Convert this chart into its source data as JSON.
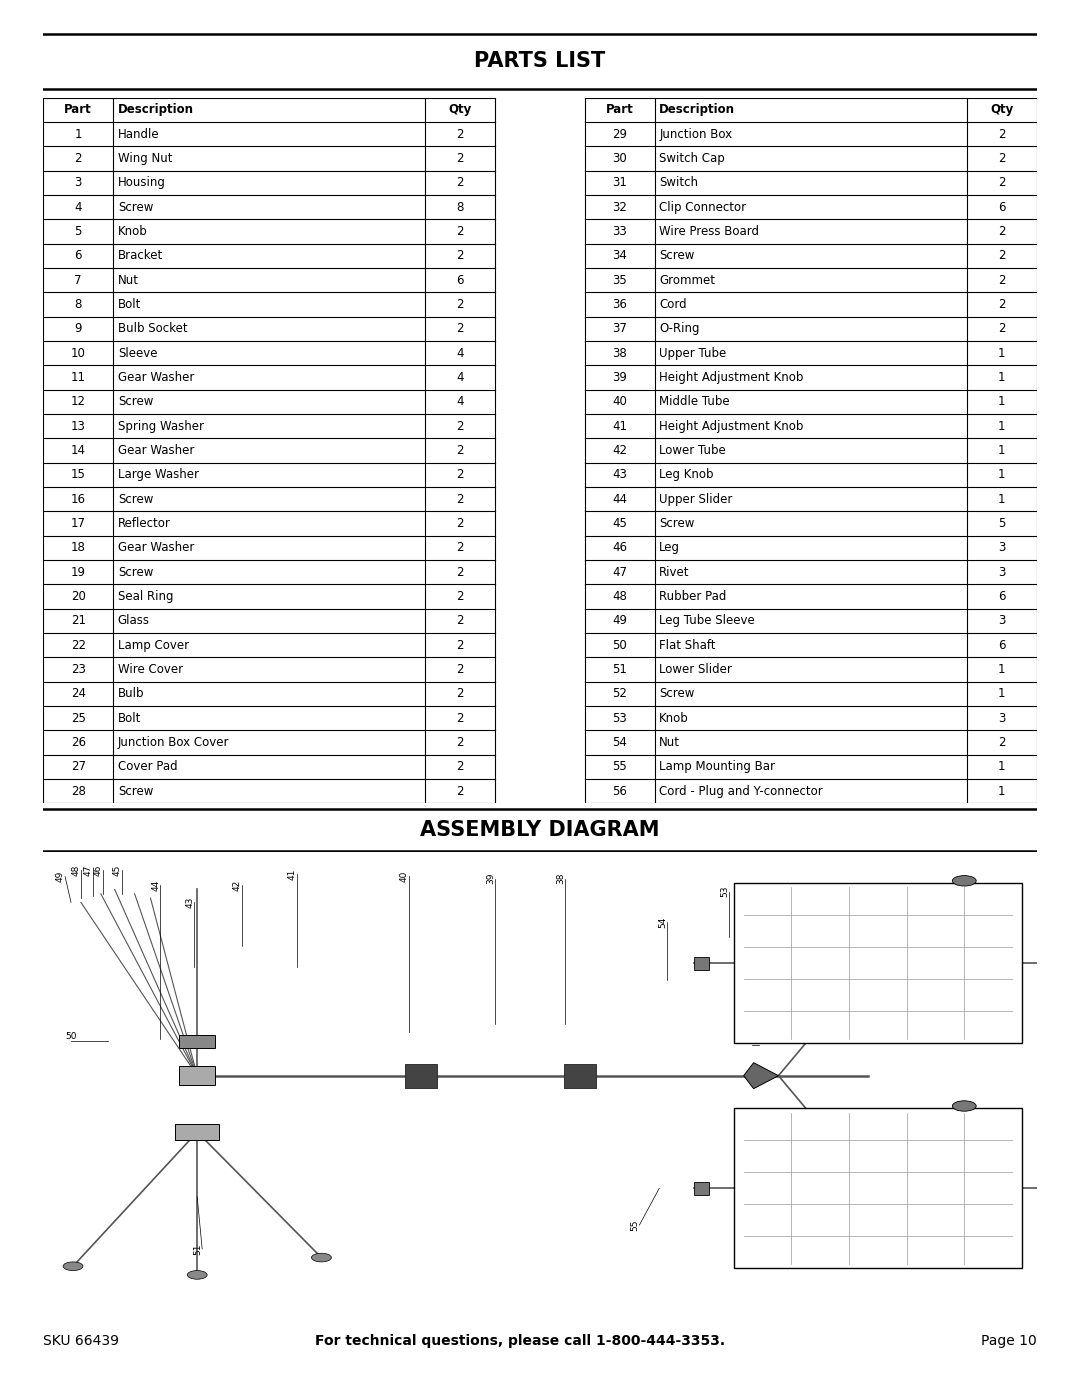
{
  "title": "PARTS LIST",
  "assembly_title": "ASSEMBLY DIAGRAM",
  "footer_sku": "SKU 66439",
  "footer_text": "For technical questions, please call 1-800-444-3353.",
  "footer_page": "Page 10",
  "left_parts": [
    [
      "Part",
      "Description",
      "Qty"
    ],
    [
      "1",
      "Handle",
      "2"
    ],
    [
      "2",
      "Wing Nut",
      "2"
    ],
    [
      "3",
      "Housing",
      "2"
    ],
    [
      "4",
      "Screw",
      "8"
    ],
    [
      "5",
      "Knob",
      "2"
    ],
    [
      "6",
      "Bracket",
      "2"
    ],
    [
      "7",
      "Nut",
      "6"
    ],
    [
      "8",
      "Bolt",
      "2"
    ],
    [
      "9",
      "Bulb Socket",
      "2"
    ],
    [
      "10",
      "Sleeve",
      "4"
    ],
    [
      "11",
      "Gear Washer",
      "4"
    ],
    [
      "12",
      "Screw",
      "4"
    ],
    [
      "13",
      "Spring Washer",
      "2"
    ],
    [
      "14",
      "Gear Washer",
      "2"
    ],
    [
      "15",
      "Large Washer",
      "2"
    ],
    [
      "16",
      "Screw",
      "2"
    ],
    [
      "17",
      "Reflector",
      "2"
    ],
    [
      "18",
      "Gear Washer",
      "2"
    ],
    [
      "19",
      "Screw",
      "2"
    ],
    [
      "20",
      "Seal Ring",
      "2"
    ],
    [
      "21",
      "Glass",
      "2"
    ],
    [
      "22",
      "Lamp Cover",
      "2"
    ],
    [
      "23",
      "Wire Cover",
      "2"
    ],
    [
      "24",
      "Bulb",
      "2"
    ],
    [
      "25",
      "Bolt",
      "2"
    ],
    [
      "26",
      "Junction Box Cover",
      "2"
    ],
    [
      "27",
      "Cover Pad",
      "2"
    ],
    [
      "28",
      "Screw",
      "2"
    ]
  ],
  "right_parts": [
    [
      "Part",
      "Description",
      "Qty"
    ],
    [
      "29",
      "Junction Box",
      "2"
    ],
    [
      "30",
      "Switch Cap",
      "2"
    ],
    [
      "31",
      "Switch",
      "2"
    ],
    [
      "32",
      "Clip Connector",
      "6"
    ],
    [
      "33",
      "Wire Press Board",
      "2"
    ],
    [
      "34",
      "Screw",
      "2"
    ],
    [
      "35",
      "Grommet",
      "2"
    ],
    [
      "36",
      "Cord",
      "2"
    ],
    [
      "37",
      "O-Ring",
      "2"
    ],
    [
      "38",
      "Upper Tube",
      "1"
    ],
    [
      "39",
      "Height Adjustment Knob",
      "1"
    ],
    [
      "40",
      "Middle Tube",
      "1"
    ],
    [
      "41",
      "Height Adjustment Knob",
      "1"
    ],
    [
      "42",
      "Lower Tube",
      "1"
    ],
    [
      "43",
      "Leg Knob",
      "1"
    ],
    [
      "44",
      "Upper Slider",
      "1"
    ],
    [
      "45",
      "Screw",
      "5"
    ],
    [
      "46",
      "Leg",
      "3"
    ],
    [
      "47",
      "Rivet",
      "3"
    ],
    [
      "48",
      "Rubber Pad",
      "6"
    ],
    [
      "49",
      "Leg Tube Sleeve",
      "3"
    ],
    [
      "50",
      "Flat Shaft",
      "6"
    ],
    [
      "51",
      "Lower Slider",
      "1"
    ],
    [
      "52",
      "Screw",
      "1"
    ],
    [
      "53",
      "Knob",
      "3"
    ],
    [
      "54",
      "Nut",
      "2"
    ],
    [
      "55",
      "Lamp Mounting Bar",
      "1"
    ],
    [
      "56",
      "Cord - Plug and Y-connector",
      "1"
    ]
  ],
  "bg_color": "#ffffff",
  "text_color": "#000000",
  "lc": "#555555",
  "dark": "#333333"
}
